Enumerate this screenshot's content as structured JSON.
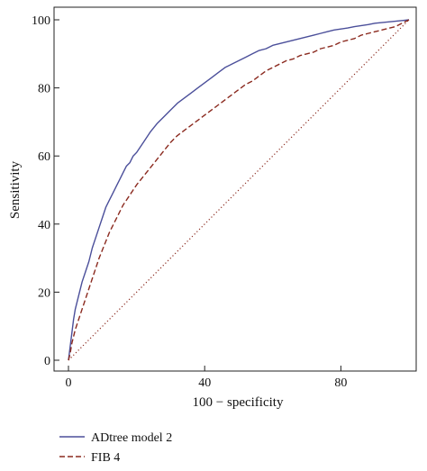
{
  "chart_data": {
    "type": "line",
    "title": "",
    "xlabel": "100 − specificity",
    "ylabel": "Sensitivity",
    "xlim": [
      0,
      100
    ],
    "ylim": [
      0,
      100
    ],
    "xticks": [
      0,
      40,
      80
    ],
    "yticks": [
      0,
      20,
      40,
      60,
      80,
      100
    ],
    "legend_position": "bottom-left",
    "series": [
      {
        "name": "ADtree model 2",
        "color": "#4b4f9a",
        "style": "solid",
        "x": [
          0,
          0.5,
          1,
          1.5,
          2,
          3,
          4,
          5,
          6,
          7,
          8,
          9,
          10,
          11,
          12,
          13,
          14,
          15,
          16,
          17,
          18,
          19,
          20,
          22,
          24,
          26,
          28,
          30,
          32,
          34,
          36,
          38,
          40,
          42,
          44,
          46,
          48,
          50,
          52,
          54,
          56,
          58,
          60,
          62,
          64,
          66,
          68,
          70,
          72,
          74,
          76,
          78,
          80,
          82,
          84,
          86,
          88,
          90,
          92,
          94,
          96,
          98,
          100
        ],
        "y": [
          0,
          4,
          8,
          12,
          15,
          19,
          23,
          26,
          29,
          33,
          36,
          39,
          42,
          45,
          47,
          49,
          51,
          53,
          55,
          57,
          58,
          60,
          61,
          64,
          67,
          69.5,
          71.5,
          73.5,
          75.5,
          77,
          78.5,
          80,
          81.5,
          83,
          84.5,
          86,
          87,
          88,
          89,
          90,
          91,
          91.5,
          92.5,
          93,
          93.5,
          94,
          94.5,
          95,
          95.5,
          96,
          96.5,
          97,
          97.3,
          97.6,
          98,
          98.3,
          98.6,
          99,
          99.2,
          99.4,
          99.6,
          99.8,
          100
        ]
      },
      {
        "name": "FIB 4",
        "color": "#8b2a1f",
        "style": "dashed",
        "x": [
          0,
          0.5,
          1,
          1.5,
          2,
          3,
          4,
          5,
          6,
          7,
          8,
          9,
          10,
          11,
          12,
          13,
          14,
          15,
          16,
          17,
          18,
          19,
          20,
          22,
          24,
          26,
          28,
          30,
          32,
          34,
          36,
          38,
          40,
          42,
          44,
          46,
          48,
          50,
          52,
          54,
          56,
          58,
          60,
          62,
          64,
          66,
          68,
          70,
          72,
          74,
          76,
          78,
          80,
          82,
          84,
          86,
          88,
          90,
          92,
          94,
          96,
          98,
          100
        ],
        "y": [
          0,
          2,
          5,
          7,
          9,
          12,
          15,
          18,
          21,
          24,
          27,
          30,
          32.5,
          35,
          37.5,
          39.5,
          41.5,
          43.5,
          45.5,
          47,
          48.5,
          50,
          51.5,
          54,
          56.5,
          59,
          61.5,
          64,
          66,
          67.5,
          69,
          70.5,
          72,
          73.5,
          75,
          76.5,
          78,
          79.5,
          81,
          82,
          83.5,
          85,
          86,
          87,
          88,
          88.5,
          89.5,
          90,
          90.5,
          91.5,
          92,
          92.5,
          93.5,
          94,
          94.5,
          95.5,
          96,
          96.5,
          97,
          97.5,
          98,
          99,
          100
        ]
      },
      {
        "name": "",
        "color": "#8b2a1f",
        "style": "dotted",
        "x": [
          0,
          100
        ],
        "y": [
          0,
          100
        ]
      }
    ]
  }
}
